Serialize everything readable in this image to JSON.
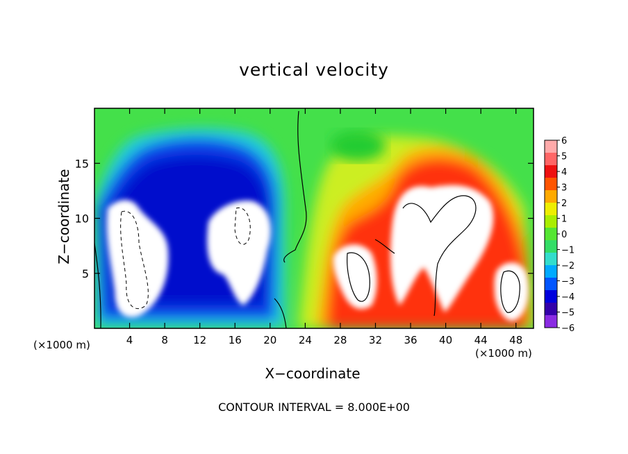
{
  "chart_data": {
    "type": "heatmap",
    "title": "vertical velocity",
    "xlabel": "X−coordinate",
    "ylabel": "Z−coordinate",
    "x_unit": "(×1000 m)",
    "x_unit_right": "(×1000 m)",
    "xlim": [
      0,
      50
    ],
    "ylim": [
      0,
      20
    ],
    "xticks": [
      "4",
      "8",
      "12",
      "16",
      "20",
      "24",
      "28",
      "32",
      "36",
      "40",
      "44",
      "48"
    ],
    "xtick_values": [
      4,
      8,
      12,
      16,
      20,
      24,
      28,
      32,
      36,
      40,
      44,
      48
    ],
    "yticks": [
      "5",
      "10",
      "15"
    ],
    "ytick_values": [
      5,
      10,
      15
    ],
    "colorbar_labels": [
      "6",
      "5",
      "4",
      "3",
      "2",
      "1",
      "0",
      "−1",
      "−2",
      "−3",
      "−4",
      "−5",
      "−6"
    ],
    "colorbar_values": [
      6,
      5,
      4,
      3,
      2,
      1,
      0,
      -1,
      -2,
      -3,
      -4,
      -5,
      -6
    ],
    "colormap": [
      "#8a2be2",
      "#3300aa",
      "#0000dd",
      "#0055ff",
      "#00aaff",
      "#33ddcc",
      "#33dd66",
      "#55e633",
      "#aaee00",
      "#eeee00",
      "#ffaa00",
      "#ff5500",
      "#ee1111",
      "#ff6666",
      "#ffaaaa"
    ],
    "annotation": "CONTOUR INTERVAL = 8.000E+00",
    "grid": false,
    "legend": "right colorbar"
  }
}
